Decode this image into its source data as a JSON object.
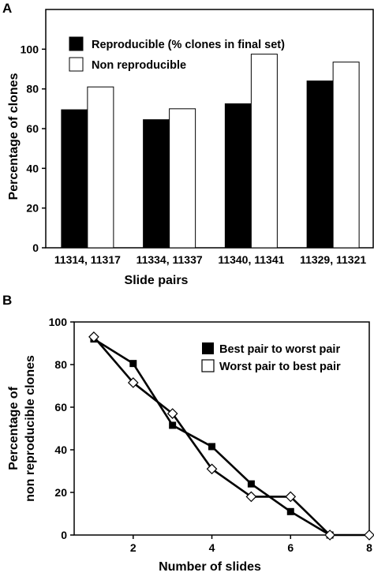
{
  "chart_data": [
    {
      "panel": "A",
      "type": "bar",
      "categories": [
        "11314, 11317",
        "11334, 11337",
        "11340, 11341",
        "11329, 11321"
      ],
      "series": [
        {
          "name": "Reproducible (% clones in final set)",
          "fill": "#000000",
          "values": [
            69.5,
            64.5,
            72.5,
            84
          ]
        },
        {
          "name": "Non reproducible",
          "fill": "#ffffff",
          "values": [
            81,
            70,
            97.5,
            93.5
          ]
        }
      ],
      "xlabel": "Slide pairs",
      "ylabel": "Percentage of clones",
      "ylim": [
        0,
        120
      ],
      "yticks": [
        0,
        20,
        40,
        60,
        80,
        100
      ],
      "legend": "top-left",
      "grid": false
    },
    {
      "panel": "B",
      "type": "line",
      "series": [
        {
          "name": "Best pair to worst pair",
          "marker": "square",
          "x": [
            1,
            2,
            3,
            4,
            5,
            6,
            7
          ],
          "y": [
            92,
            80.5,
            51.5,
            41.5,
            24,
            11,
            0
          ]
        },
        {
          "name": "Worst pair to best pair",
          "marker": "diamond",
          "x": [
            1,
            2,
            3,
            4,
            5,
            6,
            7,
            8
          ],
          "y": [
            93,
            71.5,
            57,
            31,
            18,
            18,
            0,
            0
          ]
        }
      ],
      "xlabel": "Number of slides",
      "ylabel": [
        "Percentage of",
        "non reproducible clones"
      ],
      "xlim": [
        0.5,
        8
      ],
      "ylim": [
        0,
        100
      ],
      "xticks": [
        2,
        4,
        6,
        8
      ],
      "yticks": [
        0,
        20,
        40,
        60,
        80,
        100
      ],
      "legend": "top-right",
      "grid": false
    }
  ]
}
